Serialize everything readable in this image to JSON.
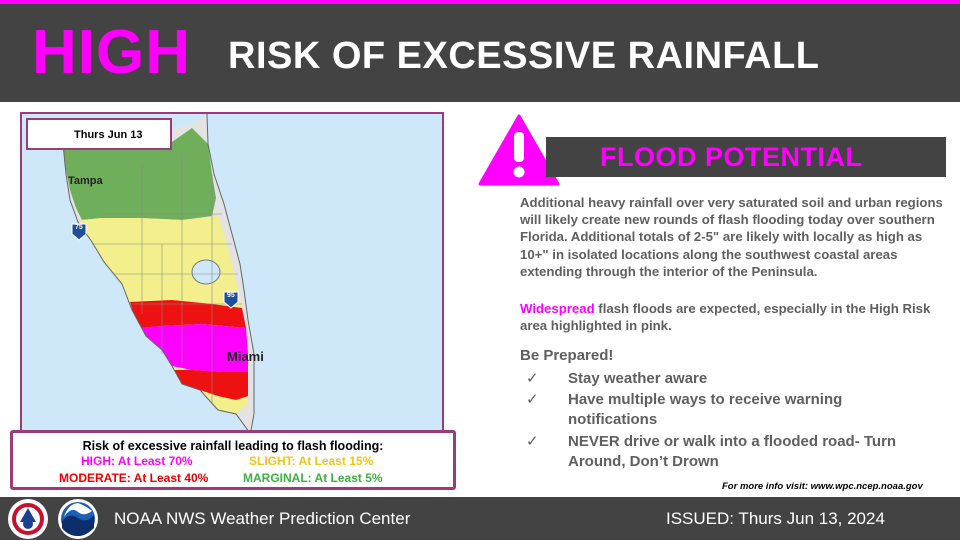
{
  "header": {
    "risk_level": "HIGH",
    "title": "RISK OF EXCESSIVE RAINFALL"
  },
  "map": {
    "date": "Thurs Jun 13",
    "cities": {
      "tampa": "Tampa",
      "miami": "Miami"
    },
    "interstates": {
      "i75": "75",
      "i95": "95"
    }
  },
  "legend": {
    "title": "Risk of excessive rainfall leading to flash flooding:",
    "items": [
      {
        "label": "HIGH: At Least 70%",
        "color": "#ff00ff"
      },
      {
        "label": "SLIGHT: At Least 15%",
        "color": "#f0c419"
      },
      {
        "label": "MODERATE: At Least 40%",
        "color": "#ee0000"
      },
      {
        "label": "MARGINAL: At Least 5%",
        "color": "#3cb043"
      }
    ]
  },
  "panel": {
    "title": "FLOOD POTENTIAL",
    "paragraph1": "Additional heavy rainfall over very saturated soil and urban regions will likely create new rounds of flash flooding today over southern Florida. Additional totals of 2-5\" are likely with locally as high as 10+\" in isolated locations along the southwest coastal areas extending through the interior of the Peninsula.",
    "highlight_word": "Widespread",
    "paragraph2_rest": " flash floods are expected, especially in the High Risk area highlighted in pink.",
    "prepared_heading": "Be Prepared!",
    "check_mark": "✓",
    "prepared_items": [
      "Stay weather aware",
      "Have multiple ways to receive warning notifications",
      "NEVER drive or walk into a flooded road- Turn Around, Don’t Drown"
    ],
    "more_info": "For more info visit: www.wpc.ncep.noaa.gov"
  },
  "footer": {
    "left": "NOAA NWS Weather Prediction Center",
    "right": "ISSUED: Thurs Jun 13, 2024"
  },
  "colors": {
    "accent": "#ff00ff",
    "bar": "#434343",
    "high": "#ff00ff",
    "moderate": "#ee0000",
    "slight": "#f3ef8c",
    "marginal": "#6fae5a"
  }
}
